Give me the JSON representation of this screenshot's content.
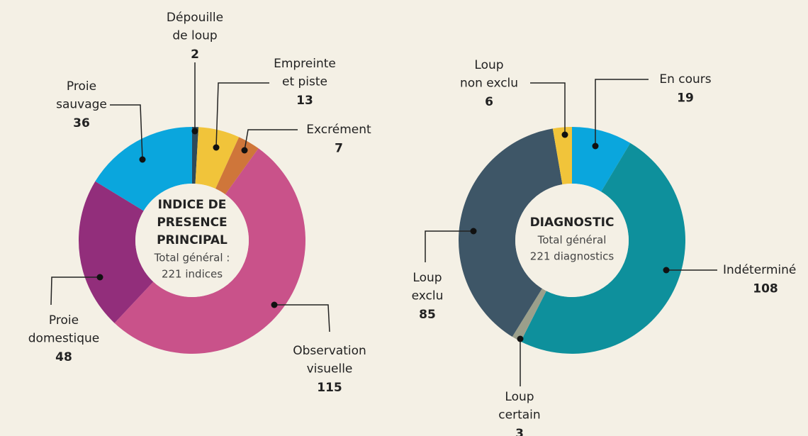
{
  "chart_data": [
    {
      "type": "donut",
      "center_title": [
        "INDICE DE",
        "PRESENCE",
        "PRINCIPAL"
      ],
      "center_subtitle": [
        "Total général :",
        "221 indices"
      ],
      "categories": [
        [
          "Dépouille",
          "de loup"
        ],
        [
          "Empreinte",
          "et piste"
        ],
        [
          "Excrément"
        ],
        [
          "Observation",
          "visuelle"
        ],
        [
          "Proie",
          "domestique"
        ],
        [
          "Proie",
          "sauvage"
        ]
      ],
      "values": [
        2,
        13,
        7,
        115,
        48,
        36
      ],
      "colors": [
        "#2e4a5a",
        "#f1c43a",
        "#cf763a",
        "#c9528a",
        "#922e7b",
        "#0aa6dd"
      ]
    },
    {
      "type": "donut",
      "center_title": [
        "DIAGNOSTIC"
      ],
      "center_subtitle": [
        "Total général",
        "221 diagnostics"
      ],
      "categories": [
        [
          "En cours"
        ],
        [
          "Indéterminé"
        ],
        [
          "Loup",
          "certain"
        ],
        [
          "Loup",
          "exclu"
        ],
        [
          "Loup",
          "non exclu"
        ]
      ],
      "values": [
        19,
        108,
        3,
        85,
        6
      ],
      "colors": [
        "#0aa6dd",
        "#0e909c",
        "#9b9f8b",
        "#3e5667",
        "#f1c43a"
      ]
    }
  ]
}
